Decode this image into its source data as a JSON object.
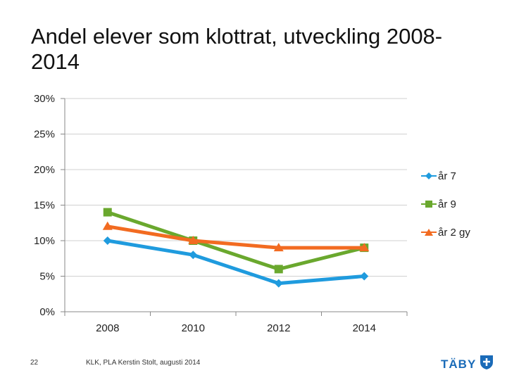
{
  "slide": {
    "title": "Andel elever som klottrat, utveckling 2008-2014",
    "page_number": "22",
    "credit": "KLK, PLA Kerstin Stolt, augusti 2014",
    "logo_text": "TÄBY",
    "logo_icon": "taby-shield-icon",
    "logo_color": "#1a6bb8"
  },
  "chart_data": {
    "type": "line",
    "title": "",
    "xlabel": "",
    "ylabel": "",
    "categories": [
      "2008",
      "2010",
      "2012",
      "2014"
    ],
    "y_ticks": [
      "0%",
      "5%",
      "10%",
      "15%",
      "20%",
      "25%",
      "30%"
    ],
    "ylim": [
      0,
      30
    ],
    "grid": true,
    "legend_position": "right",
    "series": [
      {
        "name": "år 7",
        "values": [
          10,
          8,
          4,
          5
        ],
        "color": "#1f9bde",
        "marker": "diamond"
      },
      {
        "name": "år 9",
        "values": [
          14,
          10,
          6,
          9
        ],
        "color": "#6aa82e",
        "marker": "square"
      },
      {
        "name": "år 2 gy",
        "values": [
          12,
          10,
          9,
          9
        ],
        "color": "#f26b21",
        "marker": "triangle"
      }
    ]
  }
}
